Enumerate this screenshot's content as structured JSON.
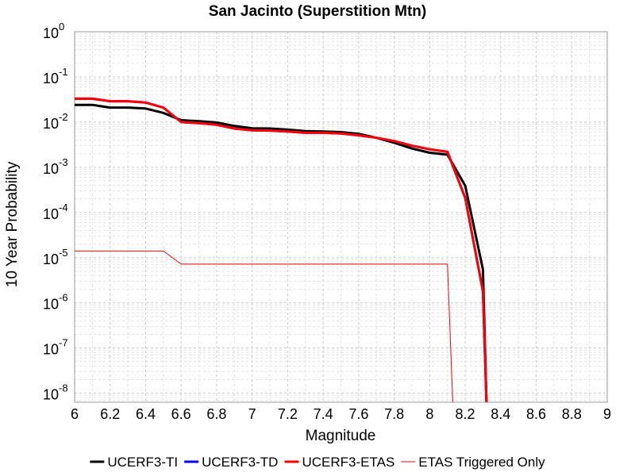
{
  "chart_data": {
    "type": "line",
    "title": "San Jacinto (Superstition Mtn)",
    "xlabel": "Magnitude",
    "ylabel": "10 Year Probability",
    "xlim": [
      6,
      9
    ],
    "ylim_log10": [
      -8.2,
      0
    ],
    "y_scale": "log",
    "x_ticks": [
      "6",
      "6.2",
      "6.4",
      "6.6",
      "6.8",
      "7",
      "7.2",
      "7.4",
      "7.6",
      "7.8",
      "8",
      "8.2",
      "8.4",
      "8.6",
      "8.8",
      "9"
    ],
    "y_ticks": [
      {
        "base": "10",
        "exp": "0",
        "value": 1
      },
      {
        "base": "10",
        "exp": "-1",
        "value": 0.1
      },
      {
        "base": "10",
        "exp": "-2",
        "value": 0.01
      },
      {
        "base": "10",
        "exp": "-3",
        "value": 0.001
      },
      {
        "base": "10",
        "exp": "-4",
        "value": 0.0001
      },
      {
        "base": "10",
        "exp": "-5",
        "value": 1e-05
      },
      {
        "base": "10",
        "exp": "-6",
        "value": 1e-06
      },
      {
        "base": "10",
        "exp": "-7",
        "value": 1e-07
      },
      {
        "base": "10",
        "exp": "-8",
        "value": 1e-08
      }
    ],
    "grid": true,
    "legend_position": "bottom",
    "series": [
      {
        "name": "UCERF3-TI",
        "color": "#000000",
        "width": 3,
        "x": [
          6.0,
          6.1,
          6.2,
          6.3,
          6.4,
          6.5,
          6.6,
          6.7,
          6.8,
          6.9,
          7.0,
          7.1,
          7.2,
          7.3,
          7.4,
          7.5,
          7.6,
          7.7,
          7.8,
          7.9,
          8.0,
          8.1,
          8.2,
          8.3,
          8.32
        ],
        "y": [
          0.024,
          0.024,
          0.021,
          0.021,
          0.02,
          0.016,
          0.011,
          0.0105,
          0.0098,
          0.0082,
          0.0073,
          0.0072,
          0.0068,
          0.0063,
          0.0062,
          0.006,
          0.0055,
          0.0045,
          0.0035,
          0.0026,
          0.0021,
          0.0019,
          0.00039,
          5.5e-06,
          2.5e-09
        ]
      },
      {
        "name": "UCERF3-TD",
        "color": "#0000ff",
        "width": 3,
        "x": [
          6.0,
          6.1,
          6.2,
          6.3,
          6.4,
          6.5,
          6.6,
          6.7,
          6.8,
          6.9,
          7.0,
          7.1,
          7.2,
          7.3,
          7.4,
          7.5,
          7.6,
          7.7,
          7.8,
          7.9,
          8.0,
          8.1,
          8.2,
          8.3,
          8.32
        ],
        "y": [
          0.033,
          0.033,
          0.029,
          0.029,
          0.027,
          0.021,
          0.01,
          0.0095,
          0.0087,
          0.0072,
          0.0066,
          0.0065,
          0.0062,
          0.0058,
          0.0058,
          0.0056,
          0.0051,
          0.0045,
          0.0038,
          0.003,
          0.0025,
          0.0022,
          0.00021,
          1.8e-06,
          2.5e-09
        ]
      },
      {
        "name": "UCERF3-ETAS",
        "color": "#ff0000",
        "width": 3,
        "x": [
          6.0,
          6.1,
          6.2,
          6.3,
          6.4,
          6.5,
          6.6,
          6.7,
          6.8,
          6.9,
          7.0,
          7.1,
          7.2,
          7.3,
          7.4,
          7.5,
          7.6,
          7.7,
          7.8,
          7.9,
          8.0,
          8.1,
          8.2,
          8.3,
          8.32
        ],
        "y": [
          0.033,
          0.033,
          0.029,
          0.029,
          0.027,
          0.021,
          0.01,
          0.0095,
          0.0087,
          0.0072,
          0.0066,
          0.0065,
          0.0062,
          0.0058,
          0.0058,
          0.0056,
          0.0051,
          0.0045,
          0.0038,
          0.003,
          0.0025,
          0.0022,
          0.00021,
          1.8e-06,
          2.5e-09
        ]
      },
      {
        "name": "ETAS Triggered Only",
        "color": "#ff0000",
        "width": 1,
        "x": [
          6.0,
          6.5,
          6.6,
          8.1,
          8.13
        ],
        "y": [
          1.4e-05,
          1.4e-05,
          7.2e-06,
          7.2e-06,
          2.5e-09
        ]
      }
    ]
  }
}
